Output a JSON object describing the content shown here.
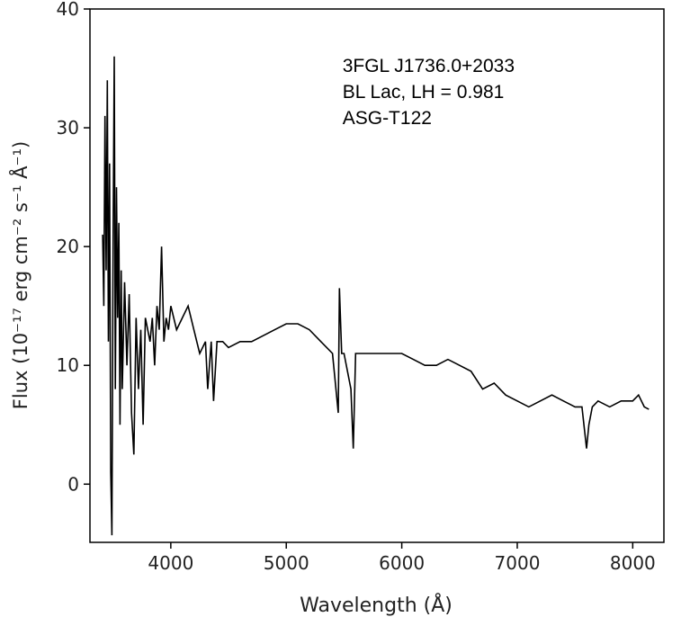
{
  "chart_data": {
    "type": "line",
    "xlabel": "Wavelength (Å)",
    "ylabel": "Flux (10⁻¹⁷ erg cm⁻² s⁻¹ Å⁻¹)",
    "annotations": [
      "3FGL J1736.0+2033",
      "BL Lac, LH = 0.981",
      "ASG-T122"
    ],
    "xlim": [
      3300,
      8270
    ],
    "ylim": [
      -4.9,
      40
    ],
    "xticks": [
      4000,
      5000,
      6000,
      7000,
      8000
    ],
    "yticks": [
      0,
      10,
      20,
      30,
      40
    ],
    "color": "#000000",
    "x": [
      3410,
      3420,
      3430,
      3440,
      3450,
      3460,
      3470,
      3480,
      3490,
      3500,
      3510,
      3520,
      3530,
      3540,
      3550,
      3560,
      3570,
      3580,
      3600,
      3620,
      3640,
      3660,
      3680,
      3700,
      3720,
      3740,
      3760,
      3780,
      3800,
      3820,
      3840,
      3860,
      3880,
      3900,
      3920,
      3940,
      3960,
      3980,
      4000,
      4050,
      4100,
      4150,
      4200,
      4250,
      4300,
      4320,
      4350,
      4370,
      4400,
      4450,
      4500,
      4600,
      4700,
      4800,
      4900,
      5000,
      5100,
      5200,
      5300,
      5400,
      5450,
      5460,
      5480,
      5500,
      5560,
      5580,
      5600,
      5700,
      5800,
      5900,
      6000,
      6100,
      6200,
      6300,
      6400,
      6500,
      6600,
      6700,
      6800,
      6900,
      7000,
      7100,
      7200,
      7300,
      7400,
      7500,
      7560,
      7600,
      7620,
      7650,
      7700,
      7800,
      7900,
      8000,
      8050,
      8100,
      8140
    ],
    "values": [
      21,
      15,
      31,
      18,
      34,
      12,
      27,
      1,
      -4.3,
      20,
      36,
      8,
      25,
      14,
      22,
      5,
      18,
      8,
      17,
      10,
      16,
      6,
      2.5,
      14,
      8,
      13,
      5,
      14,
      13,
      12,
      14,
      10,
      15,
      13,
      20,
      12,
      14,
      13,
      15,
      13,
      14,
      15,
      13,
      11,
      12,
      8,
      12,
      7,
      12,
      12,
      11.5,
      12,
      12,
      12.5,
      13,
      13.5,
      13.5,
      13,
      12,
      11,
      6,
      16.5,
      11,
      11,
      8,
      3,
      11,
      11,
      11,
      11,
      11,
      10.5,
      10,
      10,
      10.5,
      10,
      9.5,
      8,
      8.5,
      7.5,
      7,
      6.5,
      7,
      7.5,
      7,
      6.5,
      6.5,
      3,
      5,
      6.5,
      7,
      6.5,
      7,
      7,
      7.5,
      6.5,
      6.3
    ]
  }
}
